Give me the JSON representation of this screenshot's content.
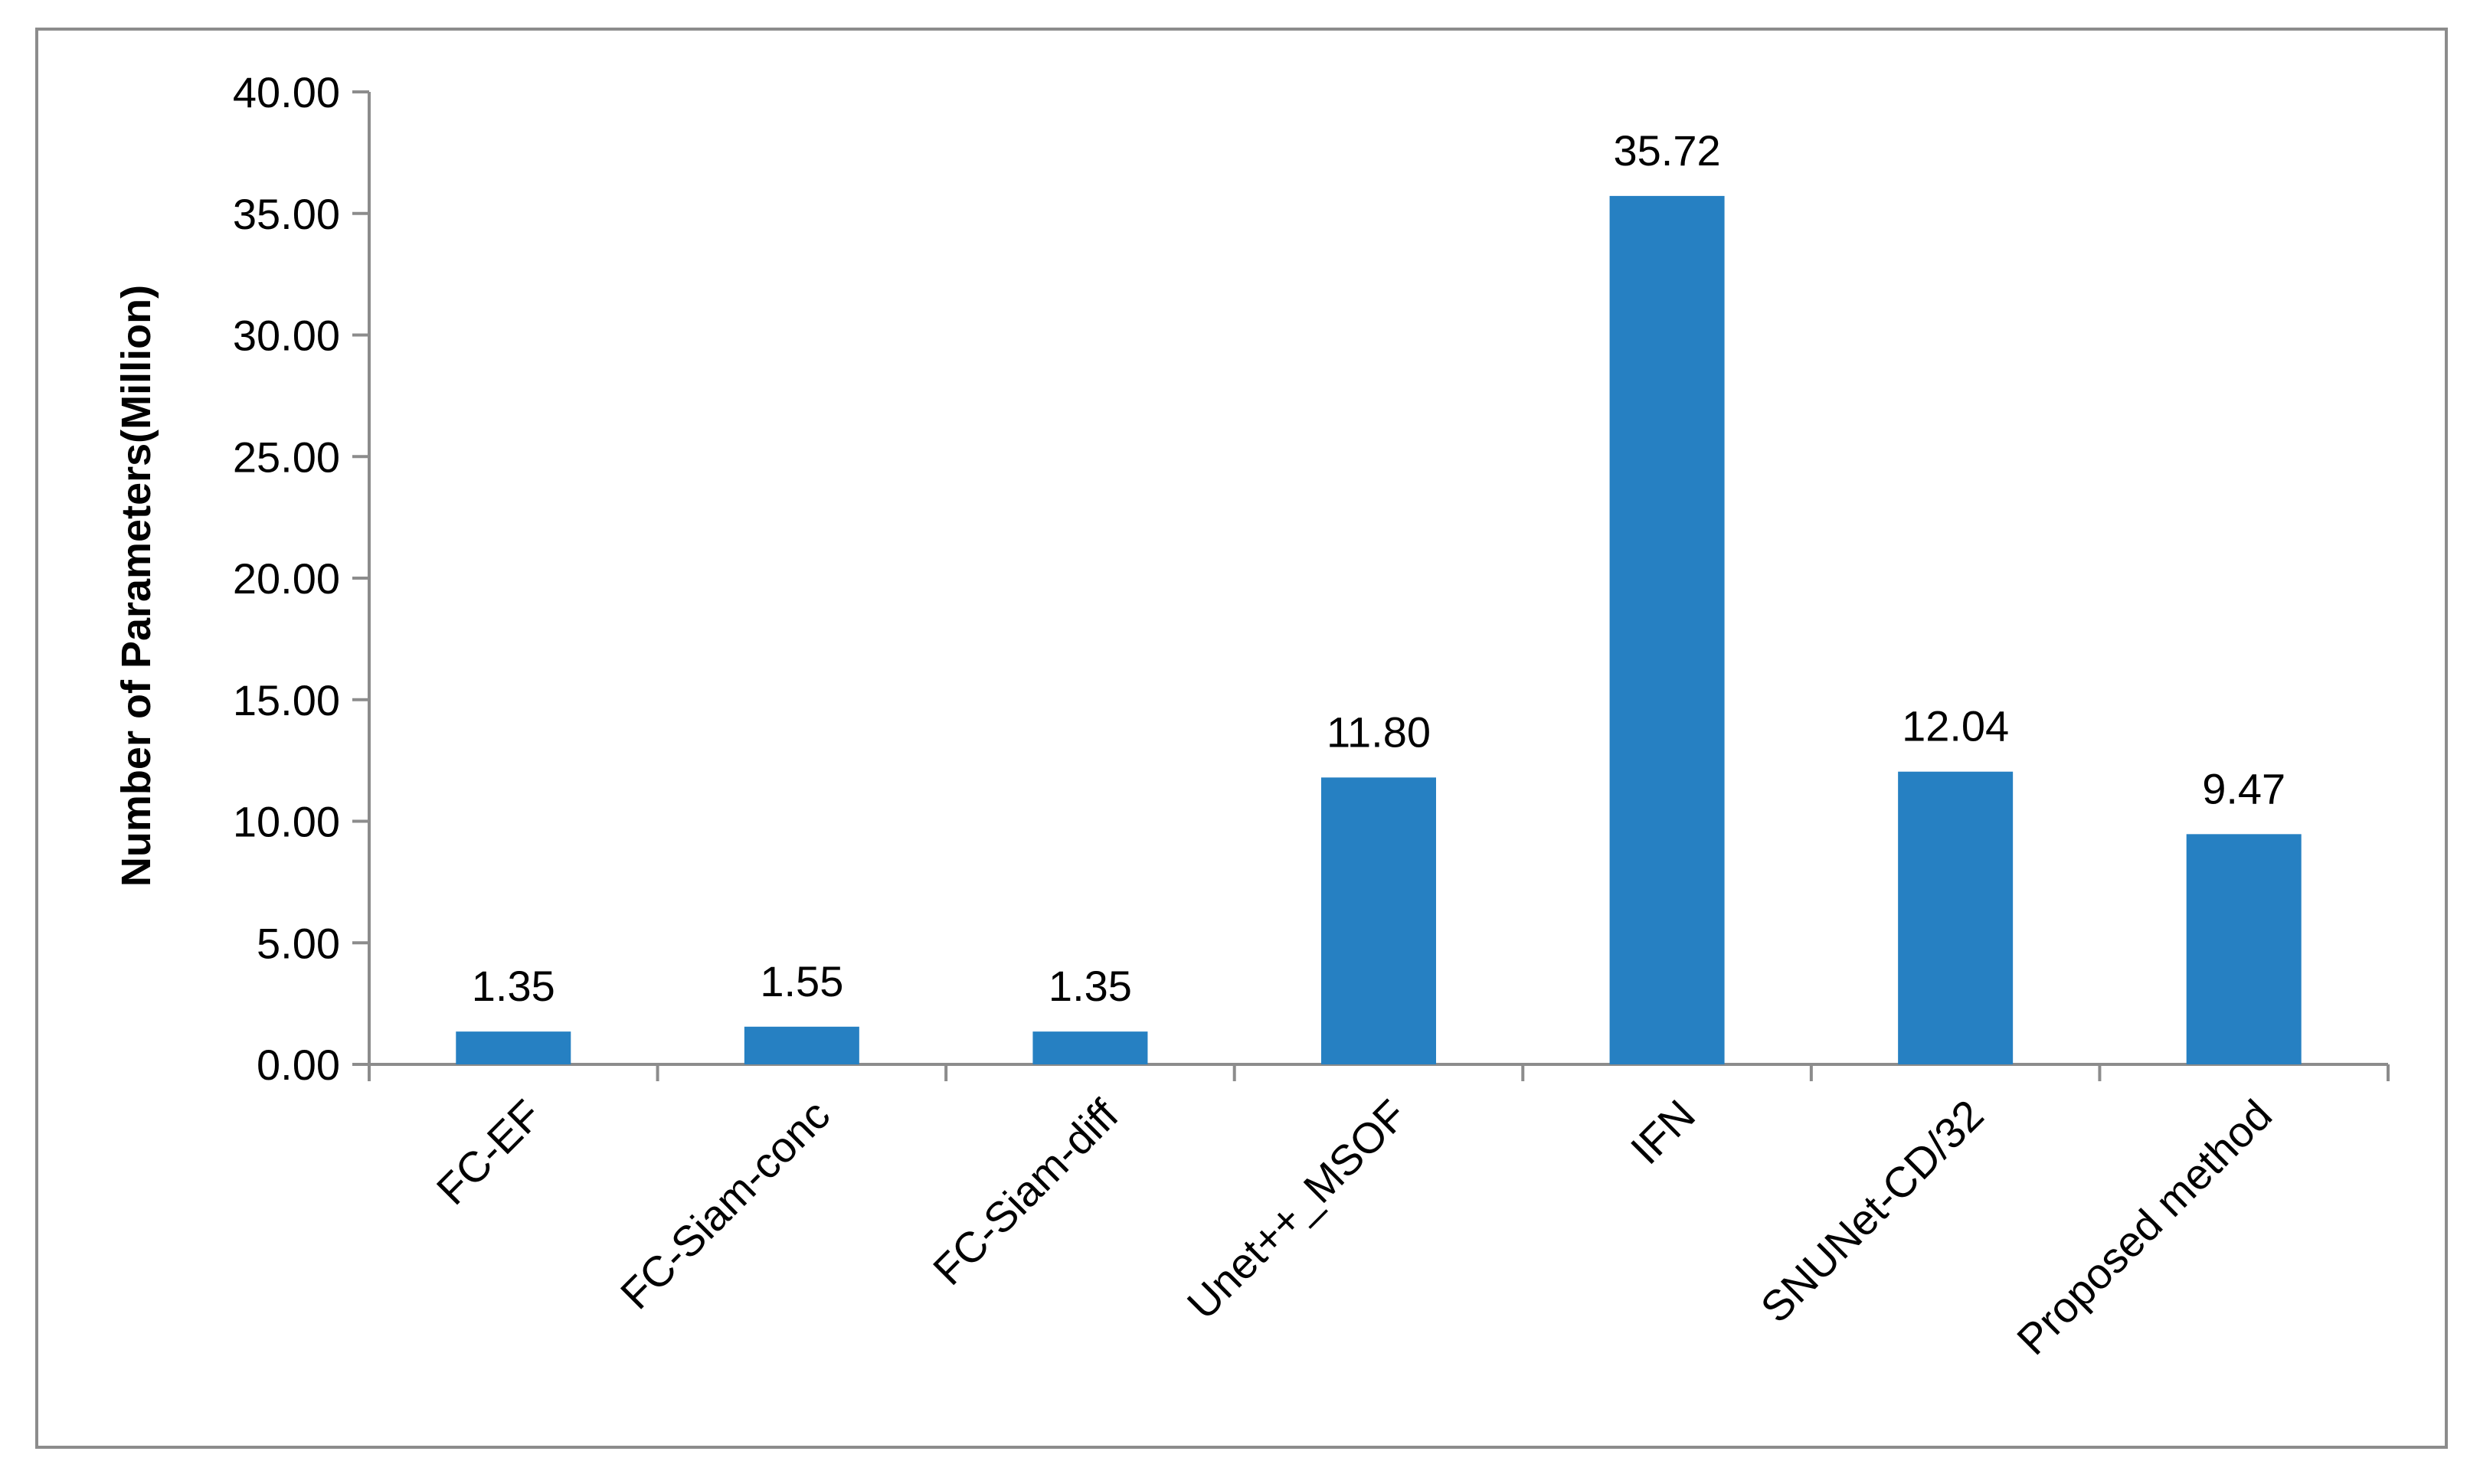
{
  "chart_data": {
    "type": "bar",
    "title": "",
    "xlabel": "",
    "ylabel": "Number  of  Parameters(Million)",
    "categories": [
      "FC-EF",
      "FC-Siam-conc",
      "FC-Siam-diff",
      "Unet++_MSOF",
      "IFN",
      "SNUNet-CD/32",
      "Proposed method"
    ],
    "values": [
      1.35,
      1.55,
      1.35,
      11.8,
      35.72,
      12.04,
      9.47
    ],
    "value_labels": [
      "1.35",
      "1.55",
      "1.35",
      "11.80",
      "35.72",
      "12.04",
      "9.47"
    ],
    "ylim": [
      0,
      40
    ],
    "yticks": [
      "0.00",
      "5.00",
      "10.00",
      "15.00",
      "20.00",
      "25.00",
      "30.00",
      "35.00",
      "40.00"
    ],
    "grid": false,
    "legend": "none",
    "bar_color": "#2680C2",
    "axis_color": "#8c8c8c"
  }
}
